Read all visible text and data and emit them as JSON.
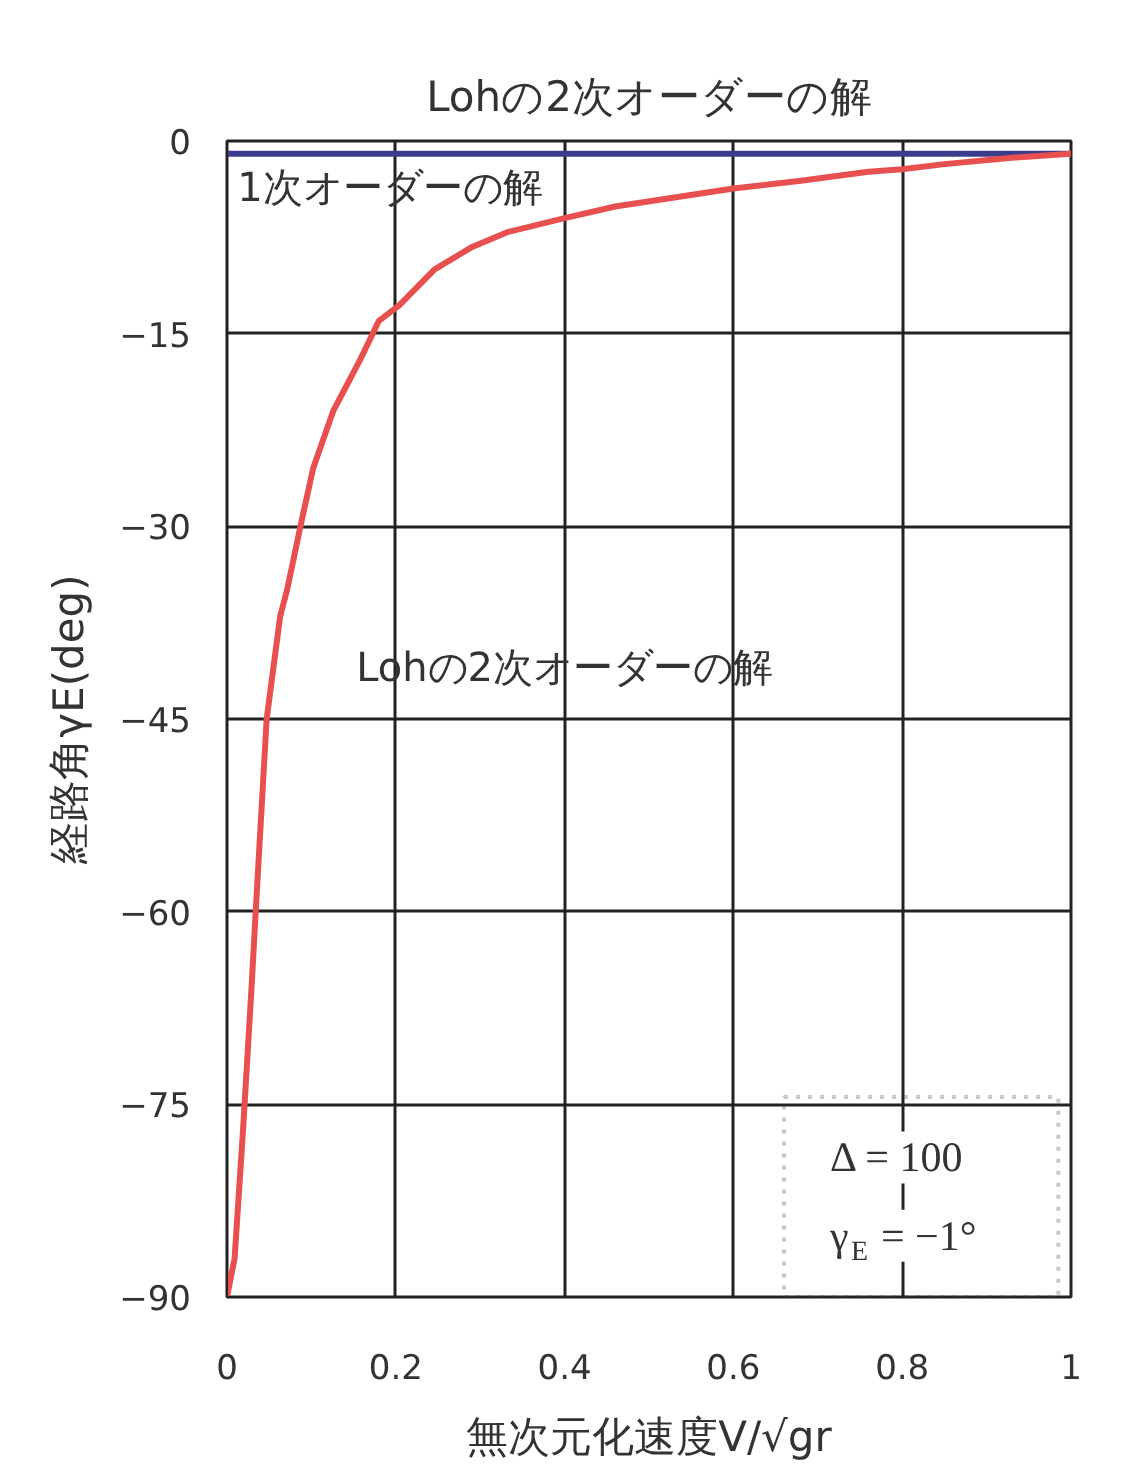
{
  "chart_data": {
    "type": "line",
    "title": "Lohの2次オーダーの解",
    "xlabel": "無次元化速度V/√gr",
    "ylabel": "経路角γE(deg)",
    "xlim": [
      0,
      1
    ],
    "ylim": [
      -90,
      0
    ],
    "xticks": [
      0,
      0.2,
      0.4,
      0.6,
      0.8,
      1
    ],
    "yticks": [
      {
        "value": -90,
        "label": "−90"
      },
      {
        "value": -75,
        "label": "−75"
      },
      {
        "value": -60,
        "label": "−60"
      },
      {
        "value": -45,
        "label": "−45"
      },
      {
        "value": -30,
        "label": "−30"
      },
      {
        "value": -15,
        "label": "−15"
      },
      0
    ],
    "grid": true,
    "line_style": "solid",
    "series": [
      {
        "color": "#3c3c8c",
        "x": [
          0,
          1
        ],
        "values": [
          -1,
          -1
        ]
      },
      {
        "color": "#e8504f",
        "x": [
          0,
          0.009,
          0.019,
          0.029,
          0.034,
          0.047,
          0.063,
          0.071,
          0.087,
          0.102,
          0.126,
          0.158,
          0.18,
          0.204,
          0.246,
          0.289,
          0.332,
          0.4,
          0.46,
          0.6,
          0.68,
          0.76,
          0.8,
          0.85,
          0.93,
          1
        ],
        "values": [
          -90,
          -87,
          -77,
          -66,
          -60,
          -45,
          -37,
          -35,
          -30,
          -25.5,
          -21,
          -17,
          -14,
          -12.8,
          -10,
          -8.3,
          -7.1,
          -6,
          -5.1,
          -3.7,
          -3.1,
          -2.4,
          -2.2,
          -1.8,
          -1.3,
          -1
        ]
      }
    ],
    "annotations": [
      "1次オーダーの解",
      "Lohの2次オーダーの解",
      "Δ = 100",
      "γ$_{E}$ = −1°"
    ]
  }
}
